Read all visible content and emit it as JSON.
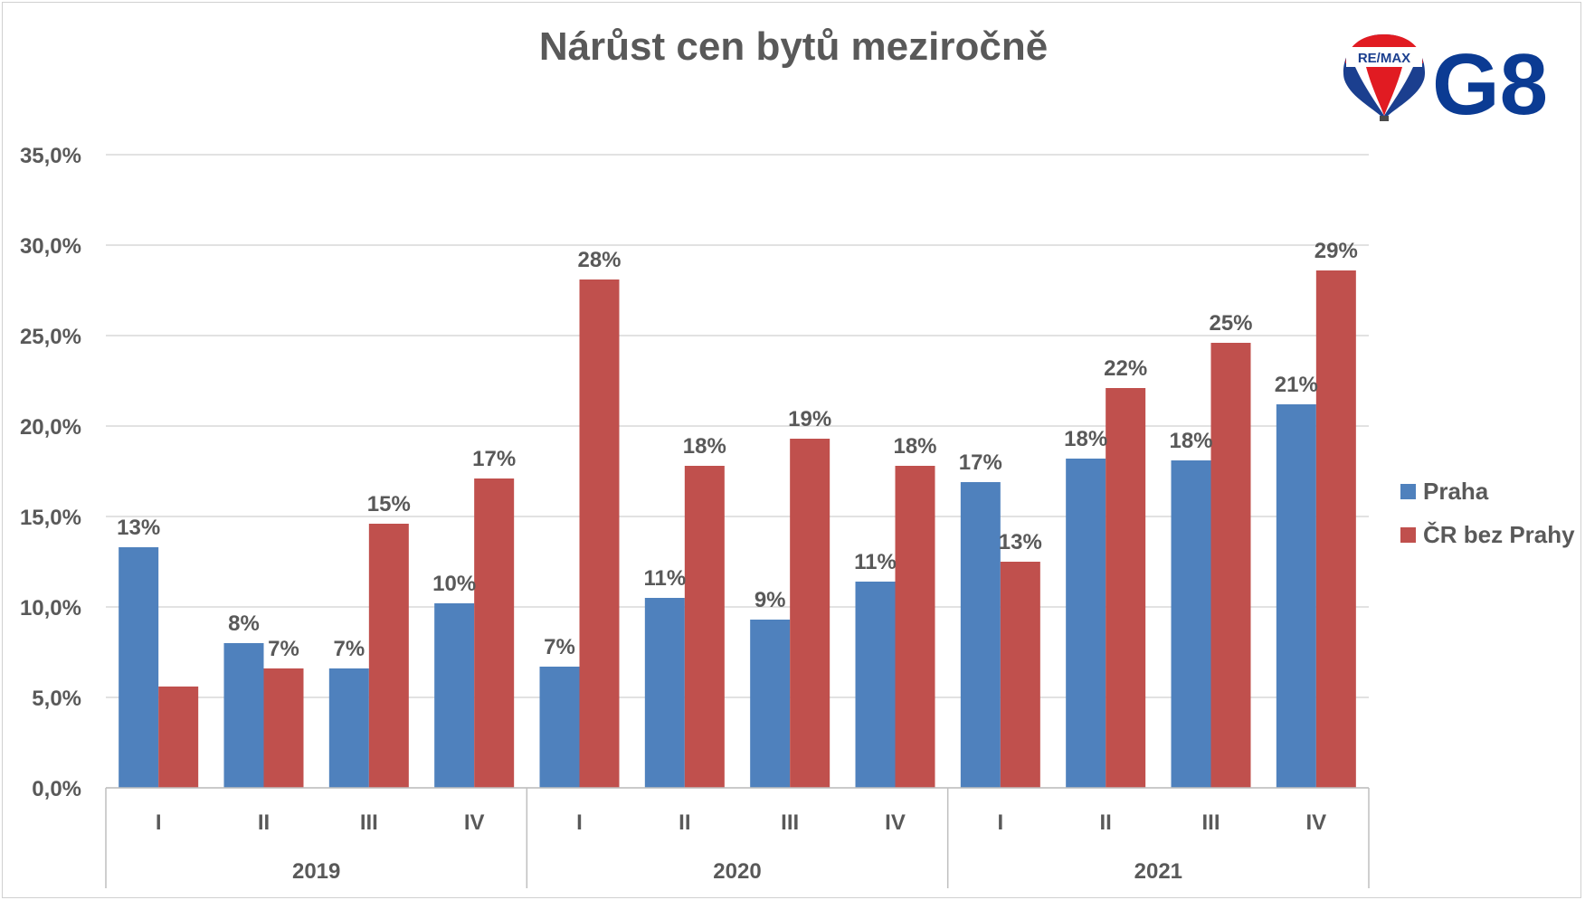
{
  "chart_data": {
    "type": "bar",
    "title": "Nárůst cen bytů meziročně",
    "groups": [
      {
        "label": "2019",
        "categories": [
          "I",
          "II",
          "III",
          "IV"
        ]
      },
      {
        "label": "2020",
        "categories": [
          "I",
          "II",
          "III",
          "IV"
        ]
      },
      {
        "label": "2021",
        "categories": [
          "I",
          "II",
          "III",
          "IV"
        ]
      }
    ],
    "series": [
      {
        "name": "Praha",
        "color": "#4f81bd",
        "values": [
          13.3,
          8.0,
          6.6,
          10.2,
          6.7,
          10.5,
          9.3,
          11.4,
          16.9,
          18.2,
          18.1,
          21.2
        ],
        "labels": [
          "13%",
          "8%",
          "7%",
          "10%",
          "7%",
          "11%",
          "9%",
          "11%",
          "17%",
          "18%",
          "18%",
          "21%"
        ]
      },
      {
        "name": "ČR bez Prahy",
        "color": "#c0504d",
        "values": [
          5.6,
          6.6,
          14.6,
          17.1,
          28.1,
          17.8,
          19.3,
          17.8,
          12.5,
          22.1,
          24.6,
          28.6
        ],
        "labels": [
          "",
          "7%",
          "15%",
          "17%",
          "28%",
          "18%",
          "19%",
          "18%",
          "13%",
          "22%",
          "25%",
          "29%"
        ]
      }
    ],
    "yticks": [
      "0,0%",
      "5,0%",
      "10,0%",
      "15,0%",
      "20,0%",
      "25,0%",
      "30,0%",
      "35,0%"
    ],
    "ylim": [
      0,
      35
    ],
    "grid": true,
    "legend_position": "right"
  },
  "logos": {
    "remax_text": "RE/MAX",
    "g8_text": "G8",
    "balloon_colors": [
      "#e11b22",
      "#ffffff",
      "#1b3f8f"
    ]
  }
}
